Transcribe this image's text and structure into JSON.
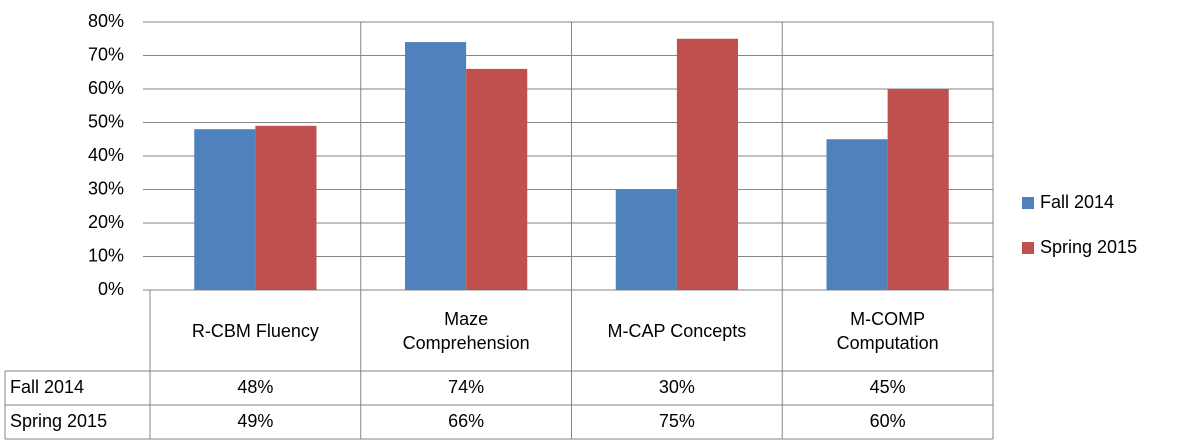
{
  "chart_data": {
    "type": "bar",
    "categories": [
      "R-CBM Fluency",
      "Maze Comprehension",
      "M-CAP Concepts",
      "M-COMP Computation"
    ],
    "series": [
      {
        "name": "Fall 2014",
        "color": "#4f81bd",
        "values": [
          48,
          74,
          30,
          45
        ],
        "value_labels": [
          "48%",
          "74%",
          "30%",
          "45%"
        ]
      },
      {
        "name": "Spring 2015",
        "color": "#c0504d",
        "values": [
          49,
          66,
          75,
          60
        ],
        "value_labels": [
          "49%",
          "66%",
          "75%",
          "60%"
        ]
      }
    ],
    "ylim": [
      0,
      80
    ],
    "yticks": [
      {
        "value": 0,
        "label": "0%"
      },
      {
        "value": 10,
        "label": "10%"
      },
      {
        "value": 20,
        "label": "20%"
      },
      {
        "value": 30,
        "label": "30%"
      },
      {
        "value": 40,
        "label": "40%"
      },
      {
        "value": 50,
        "label": "50%"
      },
      {
        "value": 60,
        "label": "60%"
      },
      {
        "value": 70,
        "label": "70%"
      },
      {
        "value": 80,
        "label": "80%"
      }
    ],
    "grid": true,
    "legend": "right"
  }
}
